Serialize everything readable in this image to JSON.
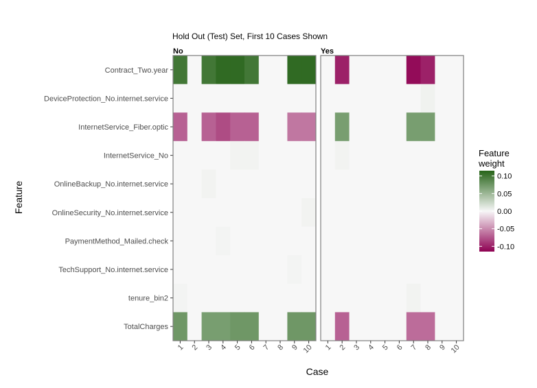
{
  "chart_data": {
    "type": "heatmap",
    "title": "Hold Out (Test) Set, First 10 Cases Shown",
    "xlabel": "Case",
    "ylabel": "Feature",
    "categories": [
      "1",
      "2",
      "3",
      "4",
      "5",
      "6",
      "7",
      "8",
      "9",
      "10"
    ],
    "features": [
      "Contract_Two.year",
      "DeviceProtection_No.internet.service",
      "InternetService_Fiber.optic",
      "InternetService_No",
      "OnlineBackup_No.internet.service",
      "OnlineSecurity_No.internet.service",
      "PaymentMethod_Mailed.check",
      "TechSupport_No.internet.service",
      "tenure_bin2",
      "TotalCharges"
    ],
    "panels": [
      {
        "name": "No",
        "values": [
          [
            0.1,
            0,
            0.1,
            0.11,
            0.11,
            0.1,
            0,
            0,
            0.11,
            0.11
          ],
          [
            0,
            0,
            0,
            0,
            0,
            0,
            0,
            0,
            0,
            0
          ],
          [
            -0.07,
            0,
            -0.07,
            -0.08,
            -0.07,
            -0.07,
            0,
            0,
            -0.06,
            -0.06
          ],
          [
            0,
            0,
            0,
            0,
            0.003,
            0.003,
            0,
            0,
            0,
            0
          ],
          [
            0,
            0,
            0.003,
            0,
            0,
            0,
            0,
            0,
            0,
            0
          ],
          [
            0,
            0,
            0,
            0,
            0,
            0,
            0,
            0,
            0,
            0.003
          ],
          [
            0,
            0,
            0,
            0.002,
            0,
            0,
            0,
            0,
            0,
            0
          ],
          [
            0,
            0,
            0,
            0,
            0,
            0,
            0,
            0,
            0.002,
            0
          ],
          [
            0.002,
            0,
            0,
            0,
            0,
            0,
            0,
            0,
            0,
            0
          ],
          [
            0.075,
            0,
            0.07,
            0.07,
            0.075,
            0.075,
            0,
            0,
            0.075,
            0.075
          ]
        ]
      },
      {
        "name": "Yes",
        "values": [
          [
            0,
            -0.1,
            0,
            0,
            0,
            0,
            -0.11,
            -0.1,
            0,
            0
          ],
          [
            0,
            0,
            0,
            0,
            0,
            0,
            0,
            0.004,
            0,
            0
          ],
          [
            0,
            0.07,
            0,
            0,
            0,
            0,
            0.07,
            0.07,
            0,
            0
          ],
          [
            0,
            0.003,
            0,
            0,
            0,
            0,
            0,
            0,
            0,
            0
          ],
          [
            0,
            0,
            0,
            0,
            0,
            0,
            0,
            0,
            0,
            0
          ],
          [
            0,
            0,
            0,
            0,
            0,
            0,
            0,
            0,
            0,
            0
          ],
          [
            0,
            0,
            0,
            0,
            0,
            0,
            0,
            0,
            0,
            0
          ],
          [
            0,
            0,
            0,
            0,
            0,
            0,
            0,
            0,
            0,
            0
          ],
          [
            0,
            0,
            0,
            0,
            0,
            0,
            0.003,
            0,
            0,
            0
          ],
          [
            0,
            -0.07,
            0,
            0,
            0,
            0,
            -0.065,
            -0.065,
            0,
            0
          ]
        ]
      }
    ],
    "legend": {
      "title_lines": [
        "Feature",
        "weight"
      ],
      "ticks": [
        0.1,
        0.05,
        0.0,
        -0.05,
        -0.1
      ],
      "tick_labels": [
        "0.10",
        "0.05",
        "0.00",
        "-0.05",
        "-0.10"
      ],
      "range": [
        -0.115,
        0.115
      ],
      "colors": {
        "high": "#276419",
        "mid": "#f7f7f7",
        "low": "#8e0152"
      },
      "placement": "right"
    }
  }
}
